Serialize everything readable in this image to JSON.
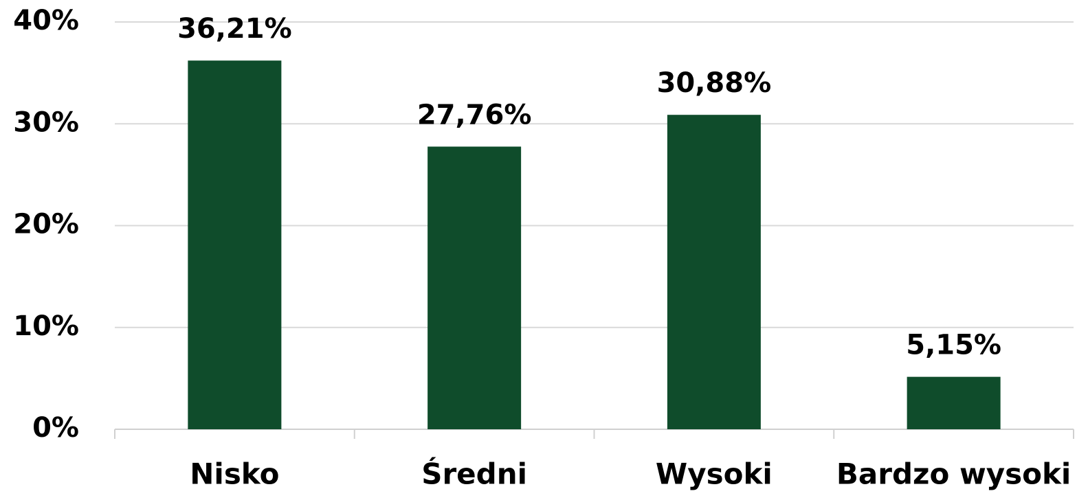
{
  "chart_data": {
    "type": "bar",
    "categories": [
      "Nisko",
      "Średni",
      "Wysoki",
      "Bardzo wysoki"
    ],
    "values": [
      36.21,
      27.76,
      30.88,
      5.15
    ],
    "value_labels": [
      "36,21%",
      "27,76%",
      "30,88%",
      "5,15%"
    ],
    "color": "#0f4c2b",
    "ylim": [
      0,
      40
    ],
    "yticks": [
      {
        "value": 0,
        "label": "0%"
      },
      {
        "value": 10,
        "label": "10%"
      },
      {
        "value": 20,
        "label": "20%"
      },
      {
        "value": 30,
        "label": "30%"
      },
      {
        "value": 40,
        "label": "40%"
      }
    ],
    "grid": true
  }
}
